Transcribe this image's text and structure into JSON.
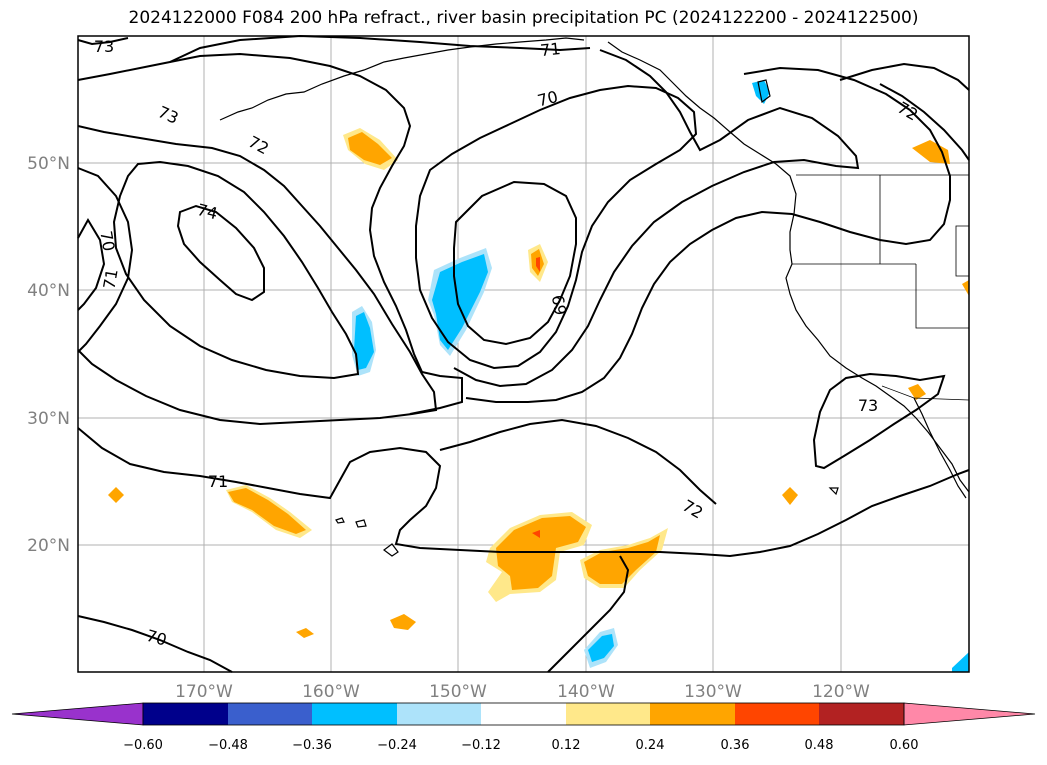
{
  "title": "2024122000 F084 200 hPa refract., river basin precipitation PC (2024122200 - 2024122500)",
  "lat_labels": [
    "50°N",
    "40°N",
    "30°N",
    "20°N"
  ],
  "lon_labels": [
    "170°W",
    "160°W",
    "150°W",
    "140°W",
    "130°W",
    "120°W"
  ],
  "contour_labels": [
    "73",
    "71",
    "70",
    "73",
    "72",
    "72",
    "74",
    "70",
    "71",
    "69",
    "73",
    "71",
    "72",
    "70"
  ],
  "colorbar": {
    "ticks": [
      "−0.60",
      "−0.48",
      "−0.36",
      "−0.24",
      "−0.12",
      "0.12",
      "0.24",
      "0.36",
      "0.48",
      "0.60"
    ],
    "colors": [
      "#9932CC",
      "#00008B",
      "#3A5FCD",
      "#00BFFF",
      "#ADE3FA",
      "#FFFFFF",
      "#FFE88A",
      "#FFA500",
      "#FF4500",
      "#B22222",
      "#FF88A8"
    ]
  },
  "colors": {
    "grid": "#b0b0b0",
    "contour": "#000000",
    "coast": "#000000"
  }
}
